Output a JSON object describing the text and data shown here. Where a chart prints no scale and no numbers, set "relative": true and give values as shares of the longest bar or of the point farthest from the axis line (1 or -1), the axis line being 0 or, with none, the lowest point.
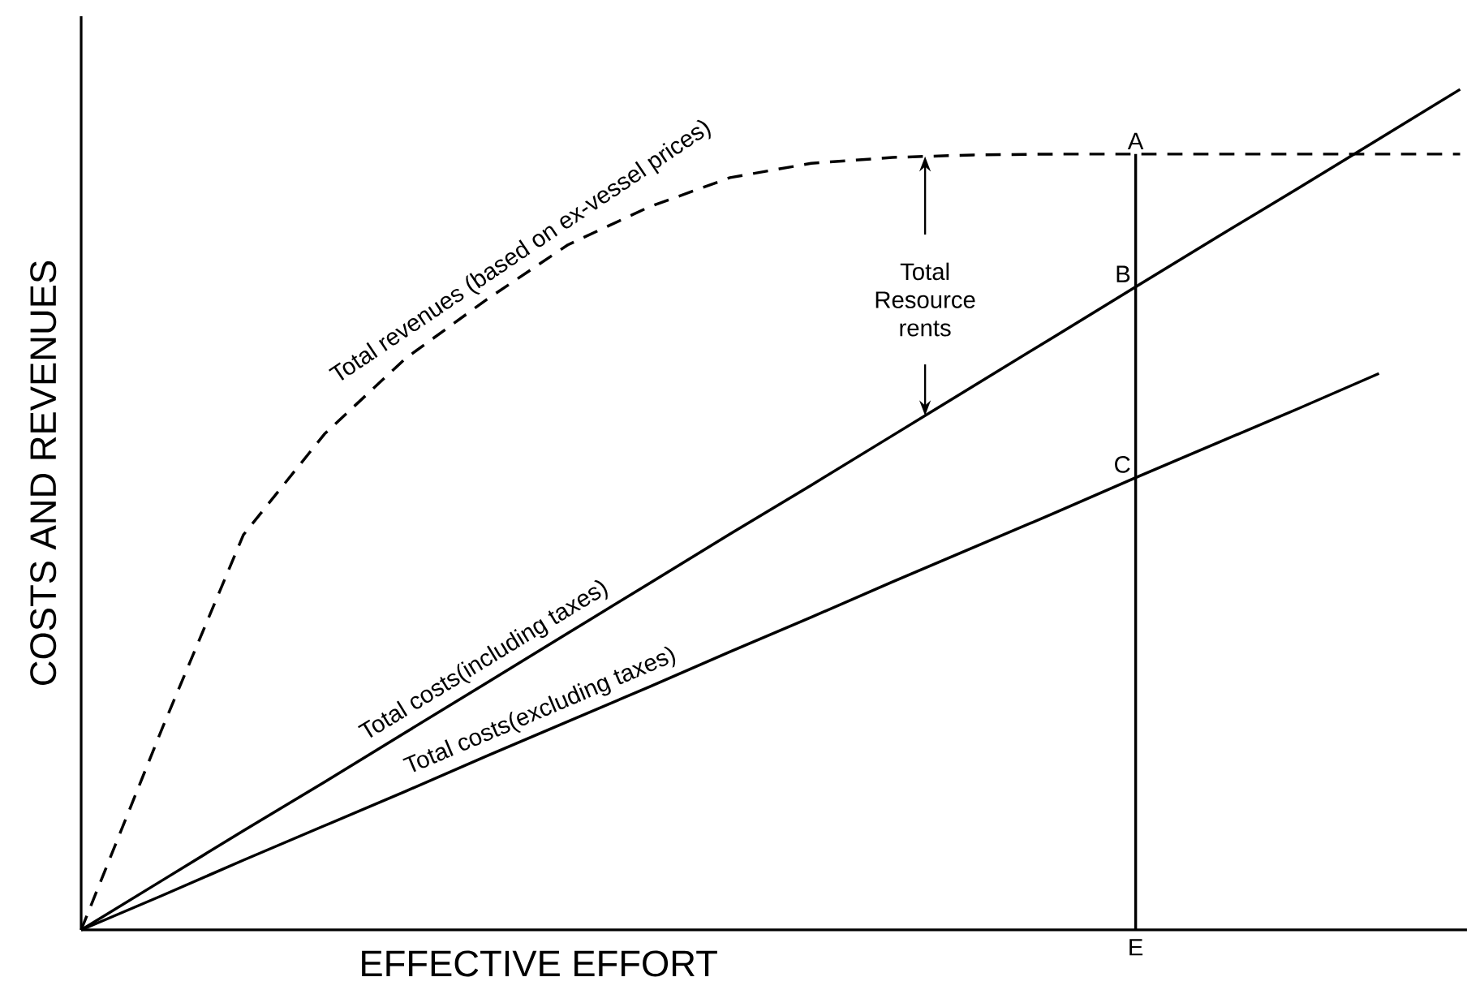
{
  "chart_data": {
    "type": "line",
    "relative": true,
    "xlabel": "EFFECTIVE EFFORT",
    "ylabel": "COSTS AND REVENUES",
    "legend": false,
    "marker": "none",
    "categories": [
      null,
      null,
      null,
      null,
      null,
      null,
      null,
      null,
      null,
      null,
      null,
      null,
      null,
      null,
      null,
      null,
      null,
      null
    ],
    "series": [
      {
        "name": "Total revenues (based on ex-vessel prices)",
        "color": "#000000",
        "line_style": "dashed",
        "values": [
          0,
          0.24,
          0.47,
          0.59,
          0.68,
          0.75,
          0.815,
          0.86,
          0.895,
          0.912,
          0.919,
          0.922,
          0.923,
          0.923,
          0.923,
          0.923,
          0.923,
          0.923
        ]
      },
      {
        "name": "Total costs(including taxes)",
        "color": "#000000",
        "values": [
          0,
          0.059,
          0.118,
          0.176,
          0.235,
          0.294,
          0.353,
          0.412,
          0.471,
          0.529,
          0.588,
          0.647,
          0.706,
          0.765,
          0.824,
          0.882,
          0.941,
          1
        ]
      },
      {
        "name": "Total costs(excluding taxes)",
        "color": "#000000",
        "values": [
          0,
          0.041,
          0.083,
          0.124,
          0.165,
          0.207,
          0.248,
          0.289,
          0.331,
          0.372,
          0.414,
          0.455,
          0.496,
          0.538,
          0.579,
          0.62,
          0.662,
          null
        ]
      }
    ],
    "annotations": [
      {
        "text": "A",
        "y": 0.923
      },
      {
        "text": "B",
        "y": 0.765
      },
      {
        "text": "C",
        "y": 0.538
      },
      "E",
      "Total Resource rents"
    ]
  }
}
